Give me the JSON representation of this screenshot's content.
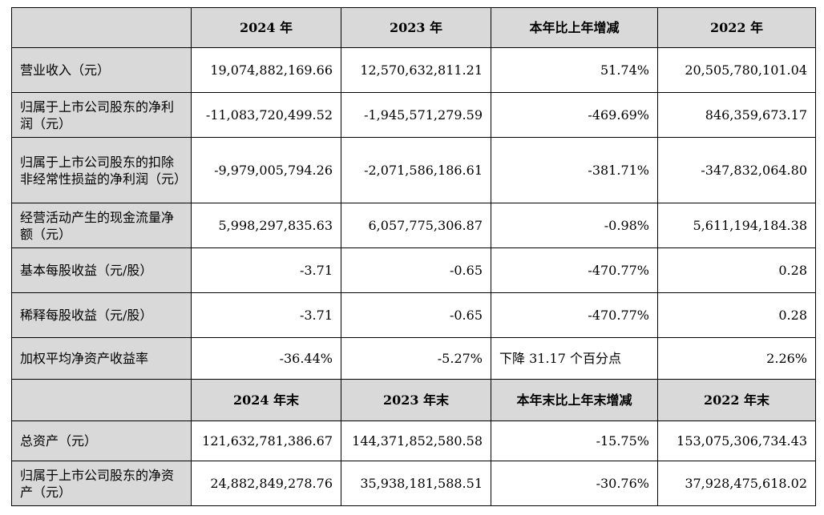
{
  "header1": {
    "col1": "2024 年",
    "col2": "2023 年",
    "col3": "本年比上年增减",
    "col4": "2022 年"
  },
  "rows1": [
    {
      "label": "营业收入（元）",
      "v2024": "19,074,882,169.66",
      "v2023": "12,570,632,811.21",
      "change": "51.74%",
      "v2022": "20,505,780,101.04"
    },
    {
      "label": "归属于上市公司股东的净利润（元）",
      "v2024": "-11,083,720,499.52",
      "v2023": "-1,945,571,279.59",
      "change": "-469.69%",
      "v2022": "846,359,673.17"
    },
    {
      "label": "归属于上市公司股东的扣除非经常性损益的净利润（元）",
      "v2024": "-9,979,005,794.26",
      "v2023": "-2,071,586,186.61",
      "change": "-381.71%",
      "v2022": "-347,832,064.80"
    },
    {
      "label": "经营活动产生的现金流量净额（元）",
      "v2024": "5,998,297,835.63",
      "v2023": "6,057,775,306.87",
      "change": "-0.98%",
      "v2022": "5,611,194,184.38"
    },
    {
      "label": "基本每股收益（元/股）",
      "v2024": "-3.71",
      "v2023": "-0.65",
      "change": "-470.77%",
      "v2022": "0.28"
    },
    {
      "label": "稀释每股收益（元/股）",
      "v2024": "-3.71",
      "v2023": "-0.65",
      "change": "-470.77%",
      "v2022": "0.28"
    },
    {
      "label": "加权平均净资产收益率",
      "v2024": "-36.44%",
      "v2023": "-5.27%",
      "change": "下降 31.17 个百分点",
      "v2022": "2.26%"
    }
  ],
  "header2": {
    "col1": "2024 年末",
    "col2": "2023 年末",
    "col3": "本年末比上年末增减",
    "col4": "2022 年末"
  },
  "rows2": [
    {
      "label": "总资产（元）",
      "v2024": "121,632,781,386.67",
      "v2023": "144,371,852,580.58",
      "change": "-15.75%",
      "v2022": "153,075,306,734.43"
    },
    {
      "label": "归属于上市公司股东的净资产（元）",
      "v2024": "24,882,849,278.76",
      "v2023": "35,938,181,588.51",
      "change": "-30.76%",
      "v2022": "37,928,475,618.02"
    }
  ]
}
